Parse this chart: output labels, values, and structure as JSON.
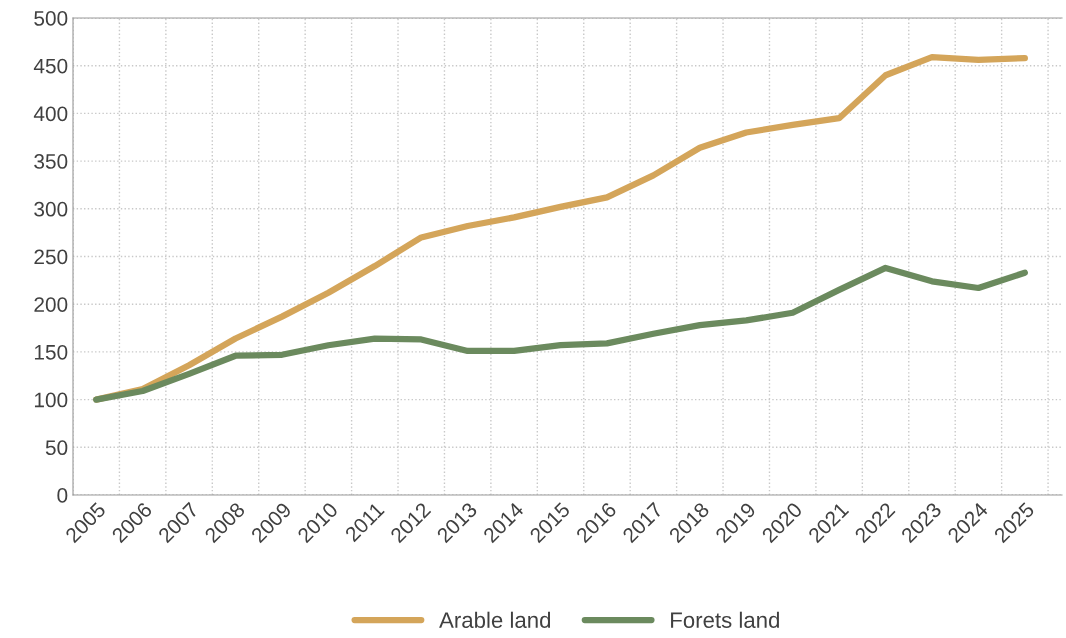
{
  "chart_data": {
    "type": "line",
    "categories": [
      "2005",
      "2006",
      "2007",
      "2008",
      "2009",
      "2010",
      "2011",
      "2012",
      "2013",
      "2014",
      "2015",
      "2016",
      "2017",
      "2018",
      "2019",
      "2020",
      "2021",
      "2022",
      "2023",
      "2024",
      "2025"
    ],
    "series": [
      {
        "name": "Arable land",
        "color": "#d4a55a",
        "values": [
          100,
          111,
          136,
          164,
          187,
          212,
          240,
          270,
          282,
          291,
          302,
          312,
          335,
          364,
          380,
          388,
          395,
          440,
          459,
          456,
          458
        ]
      },
      {
        "name": "Forets land",
        "color": "#6b8a5e",
        "values": [
          100,
          109,
          127,
          146,
          147,
          157,
          164,
          163,
          151,
          151,
          157,
          159,
          169,
          178,
          183,
          191,
          215,
          238,
          224,
          217,
          233
        ]
      }
    ],
    "ylim": [
      0,
      500
    ],
    "yticks": [
      0,
      50,
      100,
      150,
      200,
      250,
      300,
      350,
      400,
      450,
      500
    ],
    "grid": true,
    "legend": "bottom",
    "marker": "none",
    "line_style": "solid"
  }
}
